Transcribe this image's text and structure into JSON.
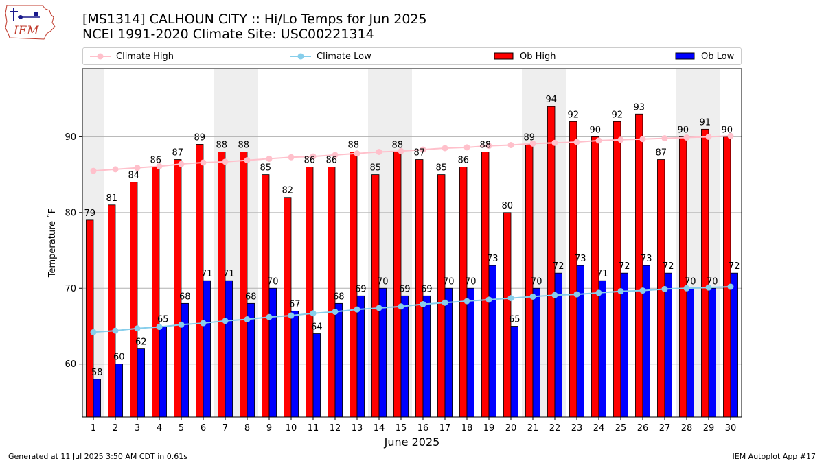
{
  "header": {
    "logo_text": "IEM",
    "title_line1": "[MS1314] CALHOUN CITY :: Hi/Lo Temps for Jun 2025",
    "title_line2": "NCEI 1991-2020 Climate Site: USC00221314"
  },
  "footer": {
    "left": "Generated at 11 Jul 2025 3:50 AM CDT in 0.61s",
    "right": "IEM Autoplot App #17"
  },
  "colors": {
    "ob_high": "#ff0000",
    "ob_low": "#0000ff",
    "climate_high": "#ffc0cb",
    "climate_low": "#87ceeb",
    "weekend_band": "#eeeeee",
    "grid": "#b0b0b0"
  },
  "chart_data": {
    "type": "bar",
    "xlabel": "June 2025",
    "ylabel": "Temperature $^\\circ$F",
    "ylim": [
      53,
      99
    ],
    "yticks": [
      60,
      70,
      80,
      90
    ],
    "grid": true,
    "legend_position": "top",
    "categories": [
      "1",
      "2",
      "3",
      "4",
      "5",
      "6",
      "7",
      "8",
      "9",
      "10",
      "11",
      "12",
      "13",
      "14",
      "15",
      "16",
      "17",
      "18",
      "19",
      "20",
      "21",
      "22",
      "23",
      "24",
      "25",
      "26",
      "27",
      "28",
      "29",
      "30"
    ],
    "weekend_days": [
      1,
      7,
      8,
      14,
      15,
      21,
      22,
      28,
      29
    ],
    "series": [
      {
        "name": "Ob High",
        "kind": "bar",
        "values": [
          79,
          81,
          84,
          86,
          87,
          89,
          88,
          88,
          85,
          82,
          86,
          86,
          88,
          85,
          88,
          87,
          85,
          86,
          88,
          80,
          89,
          94,
          92,
          90,
          92,
          93,
          87,
          90,
          91,
          90
        ]
      },
      {
        "name": "Ob Low",
        "kind": "bar",
        "values": [
          58,
          60,
          62,
          65,
          68,
          71,
          71,
          68,
          70,
          67,
          64,
          68,
          69,
          70,
          69,
          69,
          70,
          70,
          73,
          65,
          70,
          72,
          73,
          71,
          72,
          73,
          72,
          70,
          70,
          72
        ]
      },
      {
        "name": "Climate High",
        "kind": "line",
        "values": [
          85.5,
          85.7,
          85.9,
          86.1,
          86.4,
          86.6,
          86.7,
          86.9,
          87.1,
          87.3,
          87.4,
          87.6,
          87.8,
          88.0,
          88.1,
          88.3,
          88.5,
          88.6,
          88.8,
          88.9,
          89.1,
          89.2,
          89.3,
          89.5,
          89.6,
          89.7,
          89.8,
          89.9,
          90.0,
          90.1
        ]
      },
      {
        "name": "Climate Low",
        "kind": "line",
        "values": [
          64.2,
          64.4,
          64.7,
          64.9,
          65.2,
          65.4,
          65.7,
          65.9,
          66.2,
          66.4,
          66.7,
          66.9,
          67.2,
          67.4,
          67.6,
          67.9,
          68.1,
          68.3,
          68.5,
          68.7,
          68.9,
          69.1,
          69.2,
          69.4,
          69.6,
          69.7,
          69.9,
          70.0,
          70.1,
          70.2
        ]
      }
    ]
  }
}
